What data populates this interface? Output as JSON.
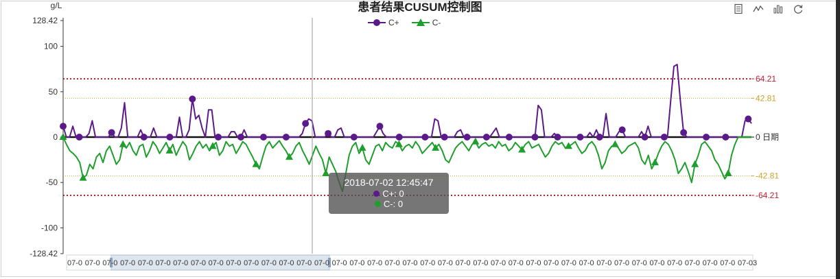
{
  "title": "患者结果CUSUM控制图",
  "legend": {
    "c_plus_label": "C+",
    "c_minus_label": "C-"
  },
  "toolbox": [
    {
      "icon": "data-view-icon"
    },
    {
      "icon": "line-chart-icon"
    },
    {
      "icon": "bar-chart-icon"
    },
    {
      "icon": "restore-icon"
    }
  ],
  "tooltip": {
    "header": "2018-07-02 12:45:47",
    "c_plus": "C+: 0",
    "c_minus": "C-: 0"
  },
  "colors": {
    "c_plus": "#5b1a8a",
    "c_minus": "#1e9e2c",
    "limit_outer": "#c0192d",
    "limit_inner": "#c9a227",
    "zero_line": "#111111"
  },
  "chart_data": {
    "type": "line",
    "ylabel": "g/L",
    "ylim": [
      -128.42,
      128.42
    ],
    "y_ticks": [
      "128.42",
      "100",
      "50",
      "0",
      "-50",
      "-100",
      "-128.42"
    ],
    "mark_lines": [
      {
        "value": 64.21,
        "label": "64.21",
        "style": "outer"
      },
      {
        "value": 42.81,
        "label": "42.81",
        "style": "inner"
      },
      {
        "value": 0,
        "label": "0 日期",
        "style": "zero"
      },
      {
        "value": -42.81,
        "label": "-42.81",
        "style": "inner"
      },
      {
        "value": -64.21,
        "label": "-64.21",
        "style": "outer"
      }
    ],
    "x_axis_labels": [
      "07-0",
      "07-0",
      "07-0",
      "07-0",
      "07-0",
      "07-0",
      "07-0",
      "07-0",
      "07-0",
      "07-0",
      "07-0",
      "07-0",
      "07-0",
      "07-0",
      "07-0",
      "07-0",
      "07-0",
      "07-0",
      "07-0",
      "07-0",
      "07-0",
      "07-0",
      "07-0",
      "07-0",
      "07-0",
      "07-0",
      "07-0",
      "07-0",
      "07-0",
      "07-0",
      "07-0",
      "07-0",
      "07-0",
      "07-0",
      "07-0",
      "07-0",
      "07-0",
      "07-0",
      "07-03"
    ],
    "series": [
      {
        "name": "C+",
        "symbol": "circle",
        "values": [
          12,
          0,
          0,
          12,
          0,
          0,
          0,
          0,
          4,
          18,
          0,
          0,
          0,
          0,
          0,
          5,
          0,
          0,
          10,
          38,
          0,
          0,
          0,
          0,
          8,
          0,
          0,
          0,
          10,
          0,
          0,
          0,
          0,
          0,
          0,
          0,
          22,
          0,
          0,
          8,
          42,
          20,
          24,
          10,
          0,
          30,
          30,
          0,
          0,
          0,
          0,
          0,
          6,
          6,
          0,
          0,
          8,
          0,
          0,
          0,
          0,
          0,
          0,
          0,
          0,
          0,
          0,
          0,
          0,
          0,
          0,
          0,
          0,
          0,
          4,
          15,
          20,
          18,
          0,
          0,
          0,
          0,
          4,
          0,
          0,
          8,
          10,
          0,
          0,
          0,
          0,
          0,
          0,
          0,
          0,
          0,
          0,
          6,
          12,
          4,
          0,
          0,
          0,
          0,
          0,
          0,
          0,
          0,
          0,
          0,
          0,
          0,
          0,
          0,
          0,
          20,
          18,
          0,
          0,
          0,
          0,
          0,
          6,
          8,
          0,
          0,
          0,
          0,
          0,
          0,
          0,
          0,
          0,
          5,
          10,
          0,
          0,
          0,
          0,
          0,
          0,
          0,
          0,
          0,
          0,
          0,
          0,
          35,
          30,
          0,
          0,
          0,
          4,
          0,
          0,
          0,
          0,
          0,
          0,
          0,
          0,
          0,
          0,
          5,
          0,
          8,
          0,
          0,
          26,
          0,
          0,
          0,
          6,
          8,
          0,
          0,
          0,
          0,
          0,
          6,
          0,
          12,
          0,
          0,
          0,
          0,
          0,
          0,
          40,
          78,
          80,
          40,
          5,
          0,
          0,
          0,
          0,
          0,
          0,
          0,
          0,
          0,
          0,
          0,
          0,
          0,
          0,
          0,
          0,
          0,
          0,
          18,
          20,
          15
        ],
        "marker_indices": [
          0,
          5,
          15,
          25,
          33,
          40,
          48,
          55,
          62,
          69,
          75,
          82,
          90,
          98,
          104,
          112,
          118,
          125,
          131,
          138,
          146,
          153,
          160,
          166,
          173,
          180,
          186,
          192,
          199,
          205,
          212
        ]
      },
      {
        "name": "C-",
        "symbol": "triangle",
        "values": [
          0,
          -8,
          -15,
          -18,
          -22,
          -28,
          -45,
          -42,
          -30,
          -35,
          -22,
          -18,
          -28,
          -15,
          -10,
          -20,
          -30,
          -25,
          -8,
          -12,
          -6,
          -15,
          -20,
          -10,
          -8,
          -22,
          -15,
          -5,
          -10,
          -18,
          -12,
          -6,
          -15,
          -8,
          -20,
          -12,
          -5,
          -10,
          -25,
          -18,
          -10,
          -5,
          -12,
          -8,
          -15,
          -10,
          -6,
          -20,
          -15,
          -5,
          -10,
          -8,
          -18,
          -12,
          -5,
          -8,
          -15,
          -22,
          -30,
          -35,
          -22,
          -10,
          -5,
          -12,
          -8,
          -4,
          -10,
          -15,
          -22,
          -18,
          -10,
          -6,
          -15,
          -22,
          -30,
          -20,
          -10,
          -18,
          -25,
          -40,
          -22,
          -30,
          -38,
          -50,
          -60,
          -40,
          -20,
          -10,
          -6,
          -18,
          -12,
          -25,
          -30,
          -20,
          -10,
          -8,
          -15,
          -6,
          -10,
          -12,
          -5,
          -8,
          -15,
          -10,
          -8,
          -12,
          -5,
          -10,
          -18,
          -14,
          -10,
          -6,
          -12,
          -8,
          -15,
          -25,
          -28,
          -20,
          -12,
          -8,
          -5,
          -10,
          -15,
          -8,
          -5,
          -12,
          -8,
          -6,
          -10,
          -8,
          -12,
          -5,
          -10,
          -8,
          -15,
          -12,
          -6,
          -10,
          -14,
          -8,
          -5,
          -12,
          -10,
          -8,
          -15,
          -22,
          -18,
          -10,
          -5,
          -8,
          -6,
          -12,
          -10,
          -8,
          -5,
          -12,
          -18,
          -15,
          -8,
          -5,
          -10,
          -20,
          -35,
          -28,
          -15,
          -10,
          -8,
          -12,
          -18,
          -15,
          -10,
          -8,
          -6,
          -12,
          -25,
          -30,
          -20,
          -35,
          -28,
          -18,
          -10,
          -5,
          -8,
          -15,
          -25,
          -40,
          -35,
          -28,
          -38,
          -50,
          -30,
          -20,
          -8,
          -5,
          -10,
          -15,
          -25,
          -30,
          -38,
          -46,
          -40,
          -20,
          -8,
          0,
          0,
          0,
          0,
          0
        ],
        "marker_indices": [
          0,
          6,
          18,
          32,
          45,
          58,
          68,
          79,
          90,
          101,
          112,
          124,
          138,
          152,
          166,
          178,
          190,
          200,
          212
        ]
      }
    ],
    "cursor_x_label": "2018-07-02 12:45:47",
    "grid": false,
    "legend_position": "top-center"
  }
}
